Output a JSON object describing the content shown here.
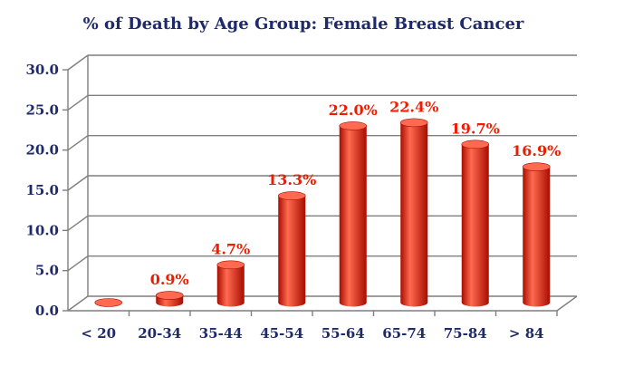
{
  "chart_data": {
    "type": "bar",
    "title": "% of Death by Age Group: Female Breast Cancer",
    "xlabel": "",
    "ylabel": "",
    "categories": [
      "< 20",
      "20-34",
      "35-44",
      "45-54",
      "55-64",
      "65-74",
      "75-84",
      "> 84"
    ],
    "values": [
      0.0,
      0.9,
      4.7,
      13.3,
      22.0,
      22.4,
      19.7,
      16.9
    ],
    "data_labels": [
      "",
      "0.9%",
      "4.7%",
      "13.3%",
      "22.0%",
      "22.4%",
      "19.7%",
      "16.9%"
    ],
    "yticks": [
      "0.0",
      "5.0",
      "10.0",
      "15.0",
      "20.0",
      "25.0",
      "30.0"
    ],
    "ylim": [
      0,
      30
    ],
    "grid": true,
    "legend": "none",
    "style": "3d-cylinder",
    "colors": {
      "title": "#1f2a6b",
      "axis_text": "#1f2a6b",
      "bar": "#ee1c00",
      "bar_dark": "#a80d00",
      "bar_light": "#ff6a50",
      "data_label": "#ee1c00",
      "grid": "#7f7f7f"
    }
  }
}
